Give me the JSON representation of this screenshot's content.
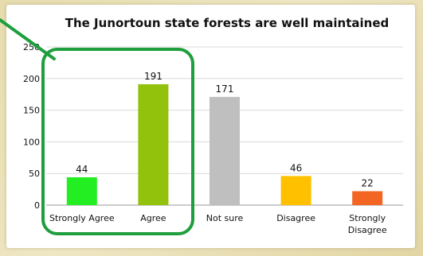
{
  "chart_data": {
    "type": "bar",
    "title": "The Junortoun state forests are well maintained",
    "categories": [
      "Strongly Agree",
      "Agree",
      "Not sure",
      "Disagree",
      "Strongly Disagree"
    ],
    "values": [
      44,
      191,
      171,
      46,
      22
    ],
    "colors": [
      "#22ee22",
      "#92c20c",
      "#bfbfbf",
      "#ffc000",
      "#f26522"
    ],
    "ylim": [
      0,
      250
    ],
    "yticks": [
      0,
      50,
      100,
      150,
      200,
      250
    ],
    "xlabel": "",
    "ylabel": "",
    "grid": true,
    "legend": "none"
  },
  "annotation": {
    "highlight_color": "#1e9e3c",
    "highlighted_categories": [
      "Strongly Agree",
      "Agree"
    ]
  }
}
